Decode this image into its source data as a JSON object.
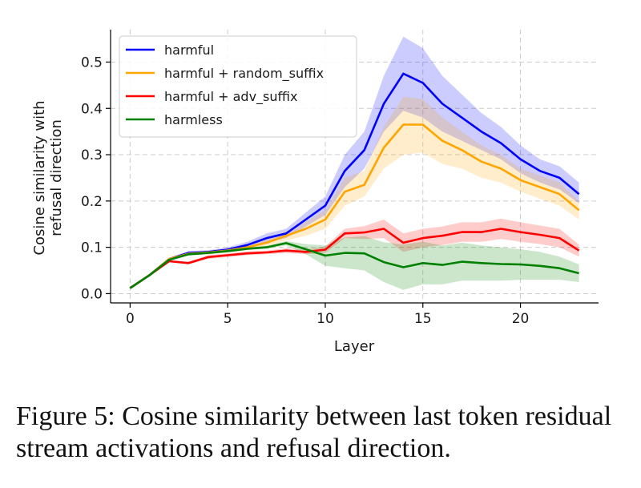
{
  "chart_data": {
    "type": "line",
    "title": "",
    "xlabel": "Layer",
    "ylabel_lines": [
      "Cosine similarity with",
      "refusal direction"
    ],
    "xlim": [
      -1,
      24
    ],
    "ylim": [
      -0.02,
      0.57
    ],
    "xticks": [
      0,
      5,
      10,
      15,
      20
    ],
    "yticks": [
      0.0,
      0.1,
      0.2,
      0.3,
      0.4,
      0.5
    ],
    "ytick_labels": [
      "0.0",
      "0.1",
      "0.2",
      "0.3",
      "0.4",
      "0.5"
    ],
    "grid": true,
    "legend_position": "top-left",
    "x": [
      0,
      1,
      2,
      3,
      4,
      5,
      6,
      7,
      8,
      9,
      10,
      11,
      12,
      13,
      14,
      15,
      16,
      17,
      18,
      19,
      20,
      21,
      22,
      23
    ],
    "series": [
      {
        "name": "harmful",
        "color": "#0000ff",
        "values": [
          0.012,
          0.04,
          0.075,
          0.088,
          0.09,
          0.095,
          0.105,
          0.12,
          0.13,
          0.16,
          0.19,
          0.265,
          0.31,
          0.41,
          0.475,
          0.455,
          0.41,
          0.38,
          0.35,
          0.325,
          0.29,
          0.265,
          0.25,
          0.215
        ],
        "band": {
          "lower": [
            0.012,
            0.04,
            0.073,
            0.084,
            0.086,
            0.09,
            0.098,
            0.11,
            0.12,
            0.145,
            0.17,
            0.23,
            0.27,
            0.35,
            0.395,
            0.38,
            0.35,
            0.33,
            0.31,
            0.29,
            0.26,
            0.24,
            0.225,
            0.195
          ],
          "upper": [
            0.012,
            0.04,
            0.077,
            0.092,
            0.094,
            0.1,
            0.112,
            0.13,
            0.14,
            0.175,
            0.21,
            0.3,
            0.35,
            0.47,
            0.555,
            0.53,
            0.47,
            0.43,
            0.39,
            0.36,
            0.32,
            0.29,
            0.275,
            0.24
          ]
        }
      },
      {
        "name": "harmful + random_suffix",
        "color": "#ffa500",
        "values": [
          0.012,
          0.04,
          0.075,
          0.086,
          0.089,
          0.093,
          0.1,
          0.11,
          0.125,
          0.14,
          0.16,
          0.22,
          0.235,
          0.315,
          0.365,
          0.365,
          0.33,
          0.31,
          0.285,
          0.27,
          0.245,
          0.23,
          0.215,
          0.18
        ],
        "band": {
          "lower": [
            0.012,
            0.04,
            0.073,
            0.083,
            0.085,
            0.088,
            0.094,
            0.102,
            0.115,
            0.125,
            0.14,
            0.19,
            0.21,
            0.27,
            0.3,
            0.305,
            0.28,
            0.27,
            0.25,
            0.24,
            0.22,
            0.205,
            0.19,
            0.16
          ],
          "upper": [
            0.012,
            0.04,
            0.077,
            0.089,
            0.093,
            0.098,
            0.106,
            0.118,
            0.135,
            0.155,
            0.18,
            0.25,
            0.265,
            0.36,
            0.425,
            0.42,
            0.38,
            0.35,
            0.32,
            0.3,
            0.27,
            0.255,
            0.24,
            0.2
          ]
        }
      },
      {
        "name": "harmful + adv_suffix",
        "color": "#ff0000",
        "values": [
          0.012,
          0.04,
          0.07,
          0.066,
          0.079,
          0.083,
          0.087,
          0.089,
          0.093,
          0.09,
          0.095,
          0.13,
          0.132,
          0.14,
          0.11,
          0.12,
          0.125,
          0.133,
          0.133,
          0.14,
          0.133,
          0.127,
          0.12,
          0.093
        ],
        "band": {
          "lower": [
            0.012,
            0.04,
            0.068,
            0.063,
            0.075,
            0.079,
            0.083,
            0.085,
            0.088,
            0.085,
            0.088,
            0.12,
            0.118,
            0.12,
            0.09,
            0.1,
            0.105,
            0.112,
            0.112,
            0.118,
            0.112,
            0.107,
            0.1,
            0.08
          ],
          "upper": [
            0.012,
            0.04,
            0.072,
            0.069,
            0.083,
            0.087,
            0.091,
            0.093,
            0.098,
            0.095,
            0.102,
            0.14,
            0.146,
            0.16,
            0.13,
            0.14,
            0.145,
            0.154,
            0.154,
            0.162,
            0.154,
            0.147,
            0.14,
            0.106
          ]
        }
      },
      {
        "name": "harmless",
        "color": "#008000",
        "values": [
          0.012,
          0.04,
          0.073,
          0.085,
          0.088,
          0.092,
          0.097,
          0.1,
          0.109,
          0.096,
          0.082,
          0.088,
          0.087,
          0.068,
          0.057,
          0.066,
          0.062,
          0.069,
          0.066,
          0.064,
          0.063,
          0.06,
          0.055,
          0.044
        ],
        "band": {
          "lower": [
            0.012,
            0.04,
            0.071,
            0.082,
            0.085,
            0.089,
            0.094,
            0.097,
            0.104,
            0.085,
            0.06,
            0.055,
            0.05,
            0.025,
            0.008,
            0.02,
            0.02,
            0.028,
            0.028,
            0.028,
            0.03,
            0.03,
            0.03,
            0.025
          ],
          "upper": [
            0.012,
            0.04,
            0.075,
            0.088,
            0.091,
            0.095,
            0.1,
            0.103,
            0.114,
            0.107,
            0.104,
            0.121,
            0.124,
            0.111,
            0.106,
            0.112,
            0.104,
            0.11,
            0.104,
            0.1,
            0.096,
            0.09,
            0.08,
            0.063
          ]
        }
      }
    ]
  },
  "caption": {
    "text": "Figure 5:  Cosine similarity between last token residual stream activations and refusal direction."
  }
}
